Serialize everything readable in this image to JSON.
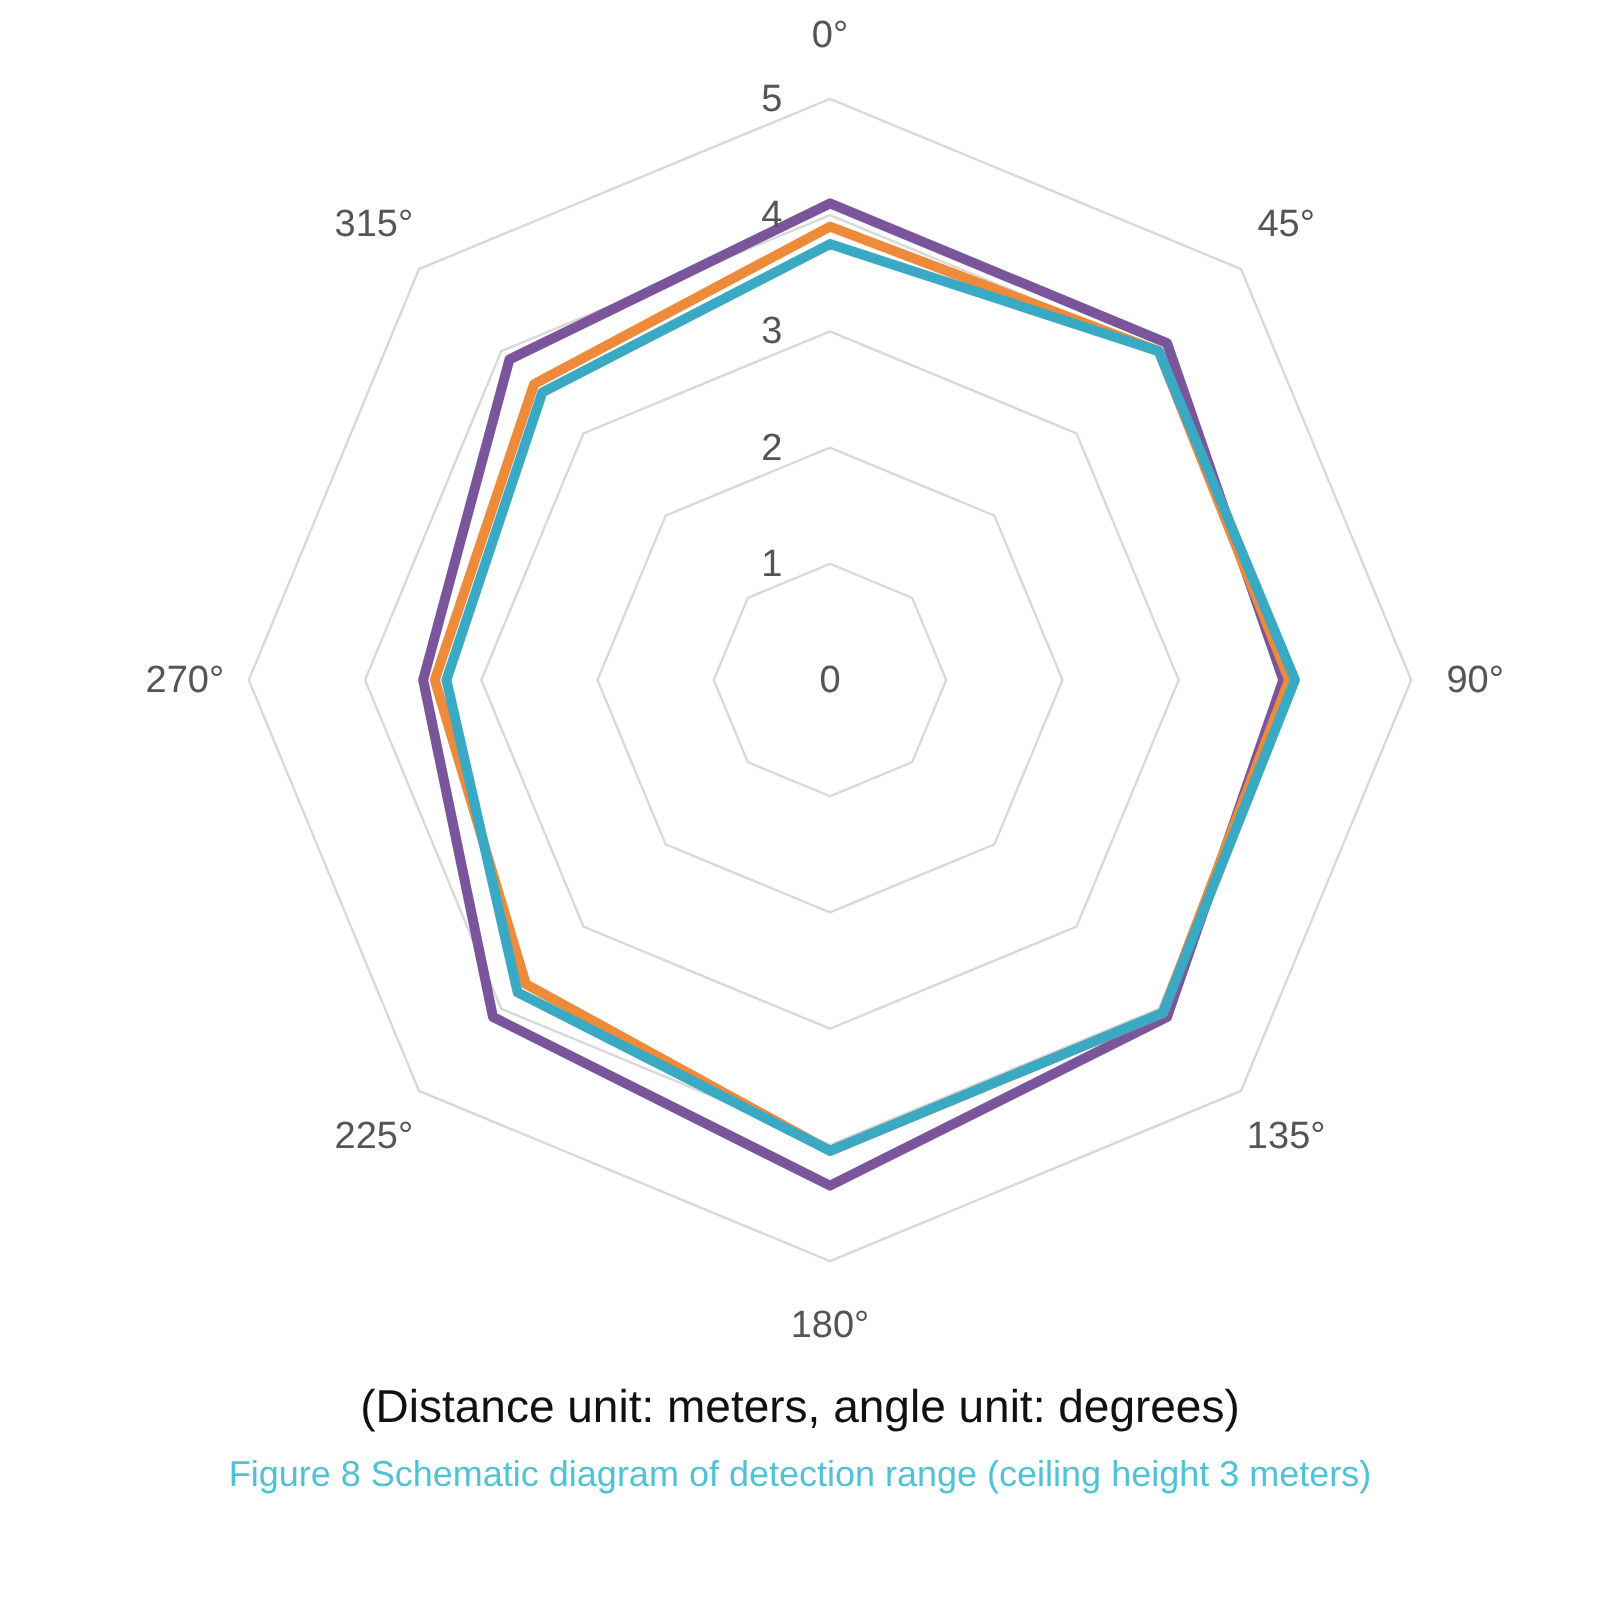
{
  "chart_data": {
    "type": "radar",
    "categories": [
      "0°",
      "45°",
      "90°",
      "135°",
      "180°",
      "225°",
      "270°",
      "315°"
    ],
    "series": [
      {
        "color": "#7b559c",
        "values": [
          4.1,
          4.1,
          3.9,
          4.1,
          4.35,
          4.1,
          3.5,
          3.9
        ]
      },
      {
        "color": "#ee8b3a",
        "values": [
          3.9,
          4.0,
          3.95,
          4.05,
          4.05,
          3.7,
          3.4,
          3.6
        ]
      },
      {
        "color": "#3aa9c4",
        "values": [
          3.75,
          4.0,
          4.0,
          4.05,
          4.05,
          3.8,
          3.3,
          3.5
        ]
      }
    ],
    "ylim": [
      0,
      5
    ],
    "yticks": [
      0,
      1,
      2,
      3,
      4,
      5
    ],
    "grid": true,
    "annotations": [
      "(Distance unit: meters, angle unit: degrees)",
      "Figure 8 Schematic diagram of detection range (ceiling height 3 meters)"
    ]
  }
}
